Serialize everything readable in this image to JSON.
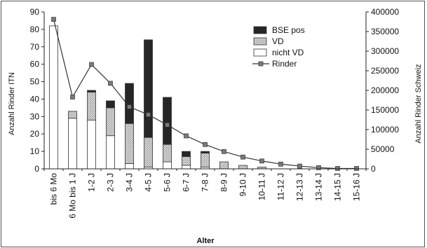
{
  "chart_data": {
    "type": "bar",
    "stacked": true,
    "xlabel": "Alter",
    "ylabel_left": "Anzahl Rinder ITN",
    "ylabel_right": "Anzahl Rinder Schweiz",
    "ylim_left": [
      0,
      90
    ],
    "ylim_right": [
      0,
      400000
    ],
    "yticks_left": [
      "0",
      "10",
      "20",
      "30",
      "40",
      "50",
      "60",
      "70",
      "80",
      "90"
    ],
    "yticks_right": [
      "0",
      "50000",
      "100000",
      "150000",
      "200000",
      "250000",
      "300000",
      "350000",
      "400000"
    ],
    "categories": [
      "bis 6 Mo",
      "6 Mo bis 1 J",
      "1-2 J",
      "2-3 J",
      "3-4 J",
      "4-5 J",
      "5-6 J",
      "6-7 J",
      "7-8 J",
      "8-9 J",
      "9-10 J",
      "10-11 J",
      "11-12 J",
      "12-13 J",
      "13-14 J",
      "14-15 J",
      "15-16 J"
    ],
    "series": [
      {
        "name": "nicht VD",
        "axis": "left",
        "color": "#ffffff",
        "values": [
          82,
          29,
          28,
          19,
          3,
          1,
          4,
          2,
          1,
          0,
          0,
          0,
          0,
          0,
          0,
          0,
          0
        ]
      },
      {
        "name": "VD",
        "axis": "left",
        "color": "#c4c4c4",
        "values": [
          0,
          4,
          16,
          16,
          23,
          17,
          10,
          5,
          8,
          4,
          2,
          1,
          0,
          0,
          0,
          0,
          0
        ]
      },
      {
        "name": "BSE pos",
        "axis": "left",
        "color": "#2a2a2a",
        "values": [
          0,
          0,
          1,
          4,
          23,
          56,
          27,
          3,
          1,
          0,
          0,
          0,
          0,
          0,
          0,
          0,
          0
        ]
      },
      {
        "name": "Rinder",
        "axis": "right",
        "type": "line",
        "color": "#444444",
        "values": [
          381000,
          183000,
          266000,
          218000,
          158000,
          138000,
          112000,
          84000,
          62000,
          44000,
          30000,
          20000,
          12000,
          7000,
          3000,
          1000,
          1000
        ]
      }
    ],
    "legend_position": "top-right",
    "grid": false
  }
}
